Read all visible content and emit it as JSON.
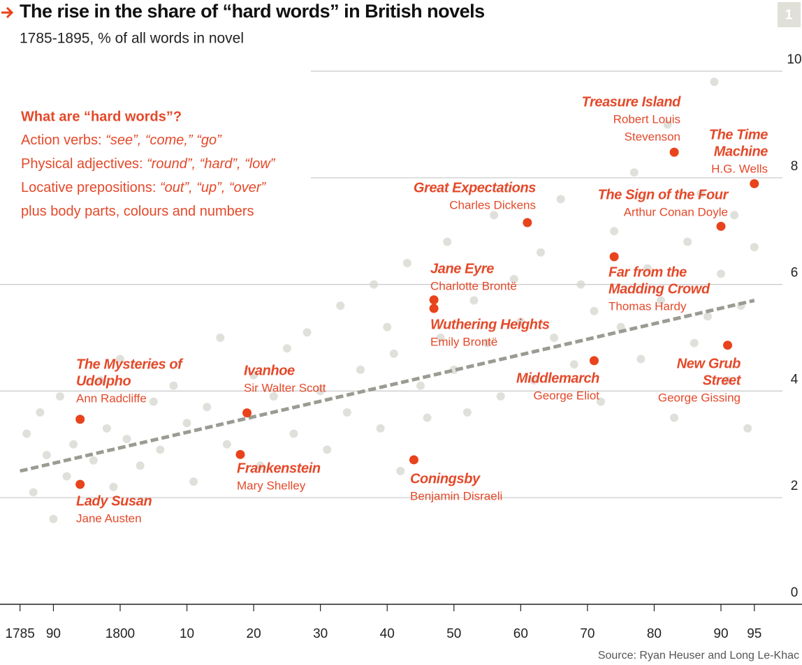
{
  "chart_data": {
    "type": "scatter",
    "title": "The rise in the share of “hard words” in British novels",
    "subtitle": "1785-1895, % of all words in novel",
    "badge": "1",
    "source": "Source: Ryan Heuser and Long Le-Khac",
    "note": {
      "heading": "What are “hard words”?",
      "lines": [
        {
          "text": "Action verbs: ",
          "example": "“see”, “come,” “go”"
        },
        {
          "text": "Physical adjectives: ",
          "example": "“round”, “hard”, “low”"
        },
        {
          "text": "Locative prepositions: ",
          "example": "“out”, “up”, “over”"
        },
        {
          "text": "plus body parts, colours and numbers"
        }
      ]
    },
    "xlim": [
      1782,
      1899
    ],
    "ylim": [
      0,
      10
    ],
    "xticks": [
      {
        "value": 1785,
        "label": "1785"
      },
      {
        "value": 1790,
        "label": "90"
      },
      {
        "value": 1800,
        "label": "1800"
      },
      {
        "value": 1810,
        "label": "10"
      },
      {
        "value": 1820,
        "label": "20"
      },
      {
        "value": 1830,
        "label": "30"
      },
      {
        "value": 1840,
        "label": "40"
      },
      {
        "value": 1850,
        "label": "50"
      },
      {
        "value": 1860,
        "label": "60"
      },
      {
        "value": 1870,
        "label": "70"
      },
      {
        "value": 1880,
        "label": "80"
      },
      {
        "value": 1890,
        "label": "90"
      },
      {
        "value": 1895,
        "label": "95"
      }
    ],
    "yticks": [
      0,
      2,
      4,
      6,
      8,
      10
    ],
    "grid": true,
    "dot_color": "#d5d5cf",
    "highlight_color": "#e8431c",
    "trend_color": "#9b9b93",
    "trend": {
      "x": [
        1785,
        1895
      ],
      "values": [
        2.5,
        5.7
      ]
    },
    "background": {
      "x": [
        1786,
        1787,
        1788,
        1789,
        1790,
        1791,
        1792,
        1793,
        1796,
        1797,
        1798,
        1799,
        1800,
        1801,
        1803,
        1805,
        1806,
        1808,
        1810,
        1811,
        1813,
        1815,
        1816,
        1820,
        1821,
        1823,
        1825,
        1826,
        1828,
        1830,
        1831,
        1833,
        1834,
        1836,
        1838,
        1839,
        1840,
        1841,
        1842,
        1843,
        1845,
        1846,
        1848,
        1849,
        1850,
        1852,
        1853,
        1855,
        1856,
        1857,
        1859,
        1860,
        1862,
        1863,
        1865,
        1866,
        1868,
        1869,
        1871,
        1872,
        1874,
        1875,
        1877,
        1878,
        1879,
        1881,
        1882,
        1883,
        1885,
        1886,
        1887,
        1888,
        1889,
        1890,
        1891,
        1892,
        1893,
        1894,
        1895
      ],
      "values": [
        3.2,
        2.1,
        3.6,
        2.8,
        1.6,
        3.9,
        2.4,
        3.0,
        2.7,
        4.2,
        3.3,
        2.2,
        4.6,
        3.1,
        2.6,
        3.8,
        2.9,
        4.1,
        3.4,
        2.3,
        3.7,
        5.0,
        3.0,
        4.3,
        2.6,
        3.9,
        4.8,
        3.2,
        5.1,
        4.0,
        2.9,
        5.6,
        3.6,
        4.4,
        6.0,
        3.3,
        5.2,
        4.7,
        2.5,
        6.4,
        4.1,
        3.5,
        5.0,
        6.8,
        4.4,
        3.6,
        5.7,
        4.9,
        7.3,
        3.9,
        6.1,
        5.3,
        4.2,
        6.6,
        5.0,
        7.6,
        4.5,
        6.0,
        5.5,
        3.8,
        7.0,
        5.2,
        8.1,
        4.6,
        6.3,
        5.7,
        9.0,
        3.5,
        6.8,
        4.9,
        7.7,
        5.4,
        9.8,
        6.2,
        4.2,
        7.3,
        5.6,
        3.3,
        6.7
      ]
    },
    "highlights": [
      {
        "title": [
          "The Mysteries of",
          "Udolpho"
        ],
        "author": [
          "Ann Radcliffe"
        ],
        "x": 1794,
        "y": 3.47
      },
      {
        "title": [
          "Lady Susan"
        ],
        "author": [
          "Jane Austen"
        ],
        "x": 1794,
        "y": 2.25
      },
      {
        "title": [
          "Ivanhoe"
        ],
        "author": [
          "Sir Walter Scott"
        ],
        "x": 1819,
        "y": 3.59
      },
      {
        "title": [
          "Frankenstein"
        ],
        "author": [
          "Mary Shelley"
        ],
        "x": 1818,
        "y": 2.81
      },
      {
        "title": [
          "Coningsby"
        ],
        "author": [
          "Benjamin Disraeli"
        ],
        "x": 1844,
        "y": 2.71
      },
      {
        "title": [
          "Jane Eyre"
        ],
        "author": [
          "Charlotte Brontë"
        ],
        "x": 1847,
        "y": 5.71
      },
      {
        "title": [
          "Wuthering Heights"
        ],
        "author": [
          "Emily Brontë"
        ],
        "x": 1847,
        "y": 5.55
      },
      {
        "title": [
          "Great Expectations"
        ],
        "author": [
          "Charles Dickens"
        ],
        "x": 1861,
        "y": 7.16
      },
      {
        "title": [
          "Middlemarch"
        ],
        "author": [
          "George Eliot"
        ],
        "x": 1871,
        "y": 4.57
      },
      {
        "title": [
          "Far from the",
          "Madding Crowd"
        ],
        "author": [
          "Thomas Hardy"
        ],
        "x": 1874,
        "y": 6.52
      },
      {
        "title": [
          "Treasure Island"
        ],
        "author": [
          "Robert Louis",
          "Stevenson"
        ],
        "x": 1883,
        "y": 8.48
      },
      {
        "title": [
          "The Sign of the Four"
        ],
        "author": [
          "Arthur Conan Doyle"
        ],
        "x": 1890,
        "y": 7.09
      },
      {
        "title": [
          "New Grub",
          "Street"
        ],
        "author": [
          "George Gissing"
        ],
        "x": 1891,
        "y": 4.86
      },
      {
        "title": [
          "The Time",
          "Machine"
        ],
        "author": [
          "H.G. Wells"
        ],
        "x": 1895,
        "y": 7.89
      }
    ]
  }
}
